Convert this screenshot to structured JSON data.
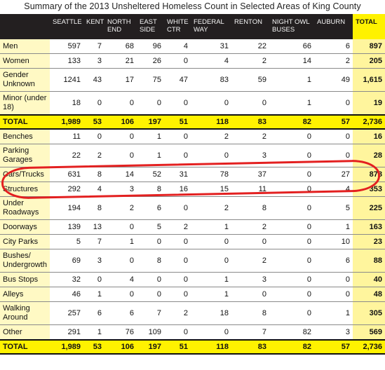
{
  "title": "Summary of the 2013 Unsheltered Homeless Count in Selected Areas of King County",
  "columns": [
    "SEATTLE",
    "KENT",
    "NORTH END",
    "EAST SIDE",
    "WHITE CTR",
    "FEDERAL WAY",
    "RENTON",
    "NIGHT OWL BUSES",
    "AUBURN",
    "TOTAL"
  ],
  "rows": [
    {
      "label": "Men",
      "values": [
        "597",
        "7",
        "68",
        "96",
        "4",
        "31",
        "22",
        "66",
        "6",
        "897"
      ]
    },
    {
      "label": "Women",
      "values": [
        "133",
        "3",
        "21",
        "26",
        "0",
        "4",
        "2",
        "14",
        "2",
        "205"
      ]
    },
    {
      "label": "Gender Unknown",
      "values": [
        "1241",
        "43",
        "17",
        "75",
        "47",
        "83",
        "59",
        "1",
        "49",
        "1,615"
      ],
      "tall": true
    },
    {
      "label": "Minor (under 18)",
      "values": [
        "18",
        "0",
        "0",
        "0",
        "0",
        "0",
        "0",
        "1",
        "0",
        "19"
      ],
      "tall": true
    },
    {
      "label": "TOTAL",
      "values": [
        "1,989",
        "53",
        "106",
        "197",
        "51",
        "118",
        "83",
        "82",
        "57",
        "2,736"
      ],
      "sum": true
    },
    {
      "label": "Benches",
      "values": [
        "11",
        "0",
        "0",
        "1",
        "0",
        "2",
        "2",
        "0",
        "0",
        "16"
      ]
    },
    {
      "label": "Parking Garages",
      "values": [
        "22",
        "2",
        "0",
        "1",
        "0",
        "0",
        "3",
        "0",
        "0",
        "28"
      ],
      "tall": true
    },
    {
      "label": "Cars/Trucks",
      "values": [
        "631",
        "8",
        "14",
        "52",
        "31",
        "78",
        "37",
        "0",
        "27",
        "878"
      ]
    },
    {
      "label": "Structures",
      "values": [
        "292",
        "4",
        "3",
        "8",
        "16",
        "15",
        "11",
        "0",
        "4",
        "353"
      ]
    },
    {
      "label": "Under Roadways",
      "values": [
        "194",
        "8",
        "2",
        "6",
        "0",
        "2",
        "8",
        "0",
        "5",
        "225"
      ],
      "tall": true
    },
    {
      "label": "Doorways",
      "values": [
        "139",
        "13",
        "0",
        "5",
        "2",
        "1",
        "2",
        "0",
        "1",
        "163"
      ]
    },
    {
      "label": "City Parks",
      "values": [
        "5",
        "7",
        "1",
        "0",
        "0",
        "0",
        "0",
        "0",
        "10",
        "23"
      ]
    },
    {
      "label": "Bushes/ Undergrowth",
      "values": [
        "69",
        "3",
        "0",
        "8",
        "0",
        "0",
        "2",
        "0",
        "6",
        "88"
      ],
      "tall": true
    },
    {
      "label": "Bus Stops",
      "values": [
        "32",
        "0",
        "4",
        "0",
        "0",
        "1",
        "3",
        "0",
        "0",
        "40"
      ]
    },
    {
      "label": "Alleys",
      "values": [
        "46",
        "1",
        "0",
        "0",
        "0",
        "1",
        "0",
        "0",
        "0",
        "48"
      ]
    },
    {
      "label": "Walking Around",
      "values": [
        "257",
        "6",
        "6",
        "7",
        "2",
        "18",
        "8",
        "0",
        "1",
        "305"
      ],
      "tall": true
    },
    {
      "label": "Other",
      "values": [
        "291",
        "1",
        "76",
        "109",
        "0",
        "0",
        "7",
        "82",
        "3",
        "569"
      ]
    },
    {
      "label": "TOTAL",
      "values": [
        "1,989",
        "53",
        "106",
        "197",
        "51",
        "118",
        "83",
        "82",
        "57",
        "2,736"
      ],
      "sum": true
    }
  ]
}
